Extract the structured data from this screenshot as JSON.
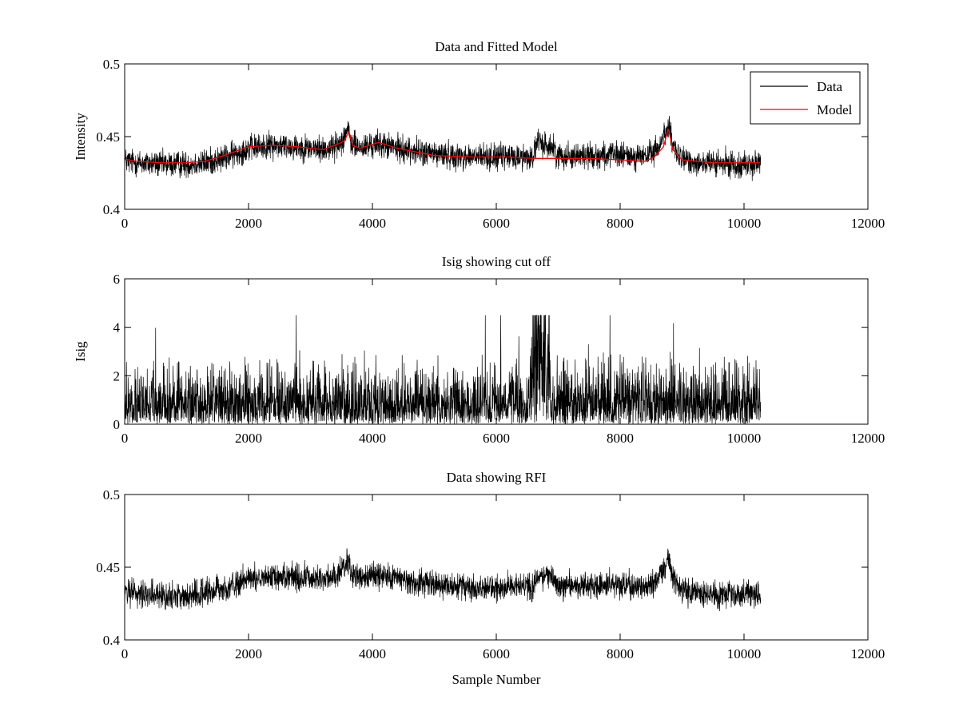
{
  "chart_data": [
    {
      "type": "line",
      "title": "Data and Fitted Model",
      "xlabel": "",
      "ylabel": "Intensity",
      "xlim": [
        0,
        12000
      ],
      "ylim": [
        0.4,
        0.5
      ],
      "xticks": [
        0,
        2000,
        4000,
        6000,
        8000,
        10000,
        12000
      ],
      "yticks": [
        0.4,
        0.45,
        0.5
      ],
      "xtick_labels": [
        "0",
        "2000",
        "4000",
        "6000",
        "8000",
        "10000",
        "12000"
      ],
      "ytick_labels": [
        "0.4",
        "0.45",
        "0.5"
      ],
      "legend": {
        "placement": "top-right",
        "entries": [
          "Data",
          "Model"
        ]
      },
      "grid": false,
      "series": [
        {
          "name": "Data",
          "color": "#000000",
          "style": "noisy",
          "x": [
            0,
            200,
            600,
            1000,
            1300,
            1600,
            2000,
            2400,
            2800,
            3200,
            3450,
            3600,
            3650,
            3800,
            4100,
            4400,
            5000,
            5600,
            6200,
            6600,
            6650,
            6900,
            7000,
            7500,
            8000,
            8400,
            8600,
            8780,
            8850,
            9000,
            9500,
            10000,
            10270
          ],
          "y": [
            0.4335,
            0.432,
            0.431,
            0.431,
            0.432,
            0.435,
            0.442,
            0.444,
            0.443,
            0.441,
            0.444,
            0.455,
            0.446,
            0.442,
            0.445,
            0.442,
            0.438,
            0.436,
            0.436,
            0.436,
            0.446,
            0.443,
            0.437,
            0.437,
            0.437,
            0.436,
            0.441,
            0.458,
            0.442,
            0.434,
            0.431,
            0.431,
            0.431
          ],
          "noise": 0.0045
        },
        {
          "name": "Model",
          "color": "#ff0000",
          "style": "smooth",
          "x": [
            0,
            200,
            600,
            1000,
            1300,
            1600,
            2000,
            2400,
            2800,
            3200,
            3450,
            3550,
            3620,
            3680,
            3800,
            4100,
            4400,
            5000,
            5600,
            6200,
            6600,
            7000,
            7500,
            8000,
            8400,
            8550,
            8700,
            8780,
            8850,
            9000,
            9500,
            10000,
            10270
          ],
          "y": [
            0.4345,
            0.433,
            0.432,
            0.432,
            0.433,
            0.437,
            0.443,
            0.444,
            0.443,
            0.441,
            0.445,
            0.447,
            0.454,
            0.444,
            0.442,
            0.446,
            0.442,
            0.437,
            0.436,
            0.436,
            0.435,
            0.435,
            0.435,
            0.434,
            0.433,
            0.436,
            0.443,
            0.456,
            0.441,
            0.434,
            0.432,
            0.432,
            0.432
          ]
        }
      ]
    },
    {
      "type": "line",
      "title": "Isig showing cut off",
      "xlabel": "",
      "ylabel": "Isig",
      "xlim": [
        0,
        12000
      ],
      "ylim": [
        0,
        6
      ],
      "xticks": [
        0,
        2000,
        4000,
        6000,
        8000,
        10000,
        12000
      ],
      "yticks": [
        0,
        2,
        4,
        6
      ],
      "xtick_labels": [
        "0",
        "2000",
        "4000",
        "6000",
        "8000",
        "10000",
        "12000"
      ],
      "ytick_labels": [
        "0",
        "2",
        "4",
        "6"
      ],
      "grid": false,
      "series": [
        {
          "color": "#000000",
          "style": "abs-noise",
          "x": [
            0,
            2000,
            4000,
            6000,
            6550,
            6620,
            6700,
            6850,
            6900,
            8000,
            10000,
            10270
          ],
          "y": [
            0.8,
            0.8,
            0.8,
            0.8,
            0.8,
            2.6,
            2.8,
            2.4,
            0.8,
            0.9,
            0.8,
            0.8
          ],
          "max": 4.5
        }
      ]
    },
    {
      "type": "line",
      "title": "Data showing RFI",
      "xlabel": "Sample Number",
      "ylabel": "",
      "xlim": [
        0,
        12000
      ],
      "ylim": [
        0.4,
        0.5
      ],
      "xticks": [
        0,
        2000,
        4000,
        6000,
        8000,
        10000,
        12000
      ],
      "yticks": [
        0.4,
        0.45,
        0.5
      ],
      "xtick_labels": [
        "0",
        "2000",
        "4000",
        "6000",
        "8000",
        "10000",
        "12000"
      ],
      "ytick_labels": [
        "0.4",
        "0.45",
        "0.5"
      ],
      "grid": false,
      "series": [
        {
          "color": "#000000",
          "style": "noisy",
          "x": [
            0,
            200,
            600,
            1000,
            1300,
            1600,
            2000,
            2400,
            2800,
            3200,
            3450,
            3600,
            3650,
            3800,
            4100,
            4400,
            5000,
            5600,
            6200,
            6600,
            6650,
            6900,
            7000,
            7500,
            8000,
            8400,
            8600,
            8780,
            8850,
            9000,
            9500,
            10000,
            10270
          ],
          "y": [
            0.4335,
            0.432,
            0.431,
            0.431,
            0.432,
            0.435,
            0.442,
            0.444,
            0.443,
            0.441,
            0.444,
            0.455,
            0.446,
            0.442,
            0.445,
            0.442,
            0.438,
            0.436,
            0.436,
            0.436,
            0.446,
            0.443,
            0.437,
            0.437,
            0.437,
            0.436,
            0.441,
            0.458,
            0.442,
            0.434,
            0.431,
            0.431,
            0.431
          ],
          "noise": 0.0045
        }
      ]
    }
  ]
}
